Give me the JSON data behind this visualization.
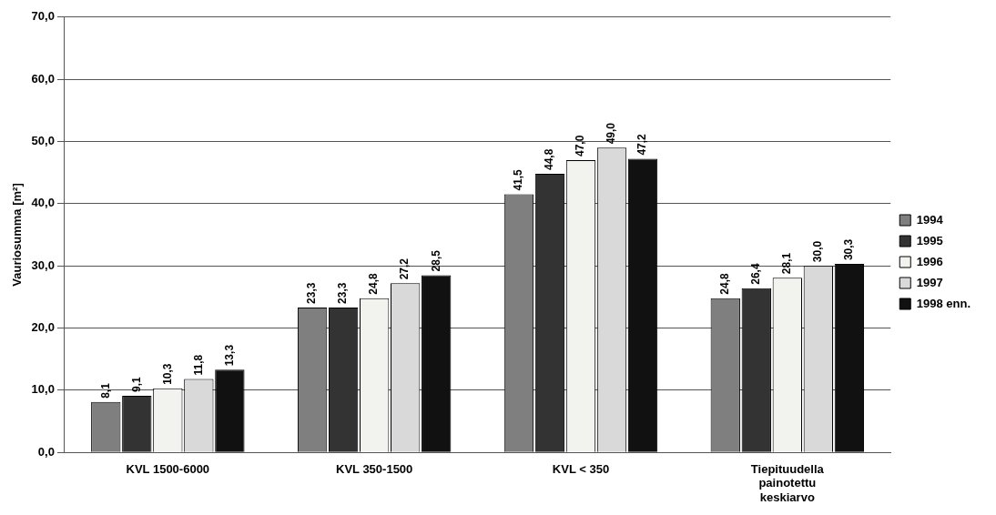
{
  "chart_data": {
    "type": "bar",
    "ylabel": "Vauriosumma [m²]",
    "categories": [
      "KVL 1500-6000",
      "KVL 350-1500",
      "KVL < 350",
      "Tiepituudella painotettu keskiarvo"
    ],
    "series": [
      {
        "name": "1994",
        "color": "#7f7f7f",
        "values": [
          8.1,
          23.3,
          41.5,
          24.8
        ],
        "value_labels": [
          "8,1",
          "23,3",
          "41,5",
          "24,8"
        ]
      },
      {
        "name": "1995",
        "color": "#333333",
        "values": [
          9.1,
          23.3,
          44.8,
          26.4
        ],
        "value_labels": [
          "9,1",
          "23,3",
          "44,8",
          "26,4"
        ]
      },
      {
        "name": "1996",
        "color": "#f2f2ee",
        "values": [
          10.3,
          24.8,
          47.0,
          28.1
        ],
        "value_labels": [
          "10,3",
          "24,8",
          "47,0",
          "28,1"
        ]
      },
      {
        "name": "1997",
        "color": "#d9d9d9",
        "values": [
          11.8,
          27.2,
          49.0,
          30.0
        ],
        "value_labels": [
          "11,8",
          "27,2",
          "49,0",
          "30,0"
        ]
      },
      {
        "name": "1998 enn.",
        "color": "#111111",
        "values": [
          13.3,
          28.5,
          47.2,
          30.3
        ],
        "value_labels": [
          "13,3",
          "28,5",
          "47,2",
          "30,3"
        ]
      }
    ],
    "ylim": [
      0,
      70
    ],
    "yticks": [
      {
        "value": 0,
        "label": "0,0"
      },
      {
        "value": 10,
        "label": "10,0"
      },
      {
        "value": 20,
        "label": "20,0"
      },
      {
        "value": 30,
        "label": "30,0"
      },
      {
        "value": 40,
        "label": "40,0"
      },
      {
        "value": 50,
        "label": "50,0"
      },
      {
        "value": 60,
        "label": "60,0"
      },
      {
        "value": 70,
        "label": "70,0"
      }
    ],
    "grid": "y",
    "legend": "right"
  }
}
